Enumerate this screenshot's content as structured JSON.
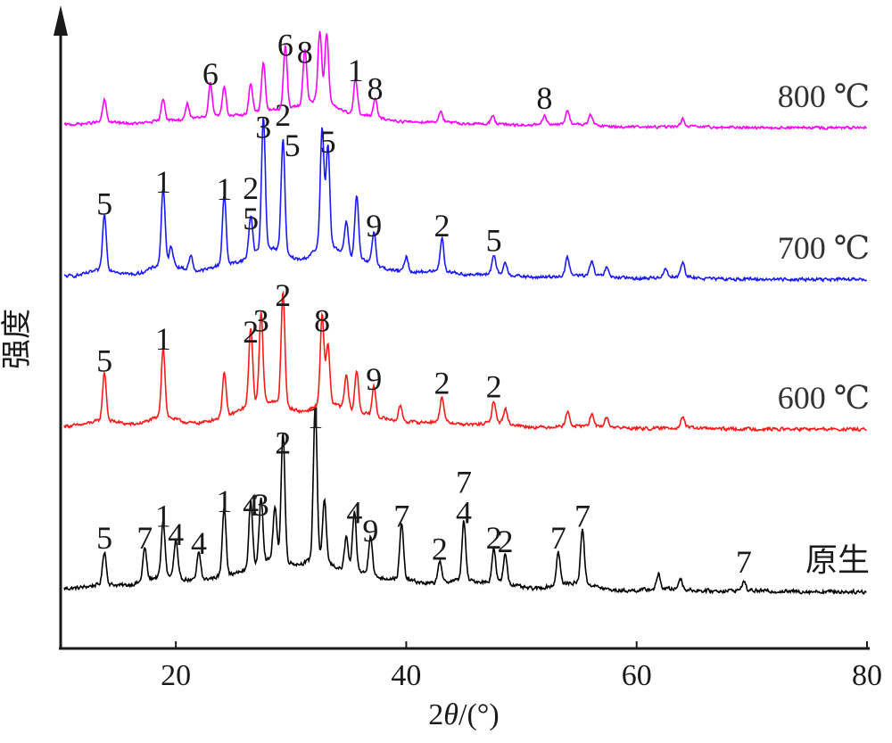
{
  "chart_data": {
    "type": "line",
    "xlabel_prefix": "2",
    "xlabel_var": "θ",
    "xlabel_suffix": "/(°)",
    "ylabel": "强度",
    "xlim": [
      10,
      80
    ],
    "xticks": [
      20,
      40,
      60,
      80
    ],
    "grid": false,
    "series": [
      {
        "name": "原生",
        "color": "#000000",
        "baseline": 0,
        "noise": 0.035,
        "peaks": [
          {
            "x": 13.8,
            "h": 0.45
          },
          {
            "x": 17.3,
            "h": 0.45
          },
          {
            "x": 18.9,
            "h": 0.75
          },
          {
            "x": 20.0,
            "h": 0.5
          },
          {
            "x": 22.0,
            "h": 0.38
          },
          {
            "x": 24.2,
            "h": 0.95
          },
          {
            "x": 26.5,
            "h": 0.9
          },
          {
            "x": 27.4,
            "h": 0.9
          },
          {
            "x": 28.6,
            "h": 0.7
          },
          {
            "x": 29.3,
            "h": 1.75
          },
          {
            "x": 32.1,
            "h": 2.1
          },
          {
            "x": 32.9,
            "h": 0.8
          },
          {
            "x": 34.8,
            "h": 0.45
          },
          {
            "x": 35.5,
            "h": 0.8
          },
          {
            "x": 36.9,
            "h": 0.55
          },
          {
            "x": 39.6,
            "h": 0.75
          },
          {
            "x": 42.9,
            "h": 0.3
          },
          {
            "x": 45.0,
            "h": 0.8
          },
          {
            "x": 47.6,
            "h": 0.45
          },
          {
            "x": 48.6,
            "h": 0.4
          },
          {
            "x": 53.2,
            "h": 0.45
          },
          {
            "x": 55.3,
            "h": 0.75
          },
          {
            "x": 61.9,
            "h": 0.2
          },
          {
            "x": 63.8,
            "h": 0.15
          },
          {
            "x": 69.3,
            "h": 0.12
          }
        ],
        "labels": [
          {
            "text": "5",
            "x": 13.8
          },
          {
            "text": "7",
            "x": 17.3
          },
          {
            "text": "1",
            "x": 18.9
          },
          {
            "text": "4",
            "x": 20.0
          },
          {
            "text": "4",
            "x": 22.0
          },
          {
            "text": "1",
            "x": 24.2
          },
          {
            "text": "4",
            "x": 26.5
          },
          {
            "text": "3",
            "x": 27.4
          },
          {
            "text": "2",
            "x": 29.3
          },
          {
            "text": "1",
            "x": 32.1
          },
          {
            "text": "4",
            "x": 35.5
          },
          {
            "text": "9",
            "x": 36.9
          },
          {
            "text": "7",
            "x": 39.6
          },
          {
            "text": "2",
            "x": 42.9
          },
          {
            "text": "7",
            "x": 45.0,
            "stack": 1
          },
          {
            "text": "4",
            "x": 45.0
          },
          {
            "text": "2",
            "x": 47.6
          },
          {
            "text": "2",
            "x": 48.6
          },
          {
            "text": "7",
            "x": 53.2
          },
          {
            "text": "7",
            "x": 55.3
          },
          {
            "text": "7",
            "x": 69.3
          }
        ]
      },
      {
        "name": "600 ℃",
        "color": "#ff1a1a",
        "baseline": 1,
        "noise": 0.03,
        "peaks": [
          {
            "x": 13.8,
            "h": 0.65
          },
          {
            "x": 18.9,
            "h": 0.95
          },
          {
            "x": 24.2,
            "h": 0.6
          },
          {
            "x": 26.5,
            "h": 1.05
          },
          {
            "x": 27.4,
            "h": 1.2
          },
          {
            "x": 29.3,
            "h": 1.55
          },
          {
            "x": 32.7,
            "h": 1.2
          },
          {
            "x": 33.2,
            "h": 0.8
          },
          {
            "x": 34.8,
            "h": 0.45
          },
          {
            "x": 35.7,
            "h": 0.55
          },
          {
            "x": 37.2,
            "h": 0.4
          },
          {
            "x": 39.5,
            "h": 0.2
          },
          {
            "x": 43.1,
            "h": 0.35
          },
          {
            "x": 47.6,
            "h": 0.3
          },
          {
            "x": 48.6,
            "h": 0.2
          },
          {
            "x": 54.0,
            "h": 0.2
          },
          {
            "x": 56.1,
            "h": 0.15
          },
          {
            "x": 57.4,
            "h": 0.12
          },
          {
            "x": 64.0,
            "h": 0.15
          }
        ],
        "labels": [
          {
            "text": "5",
            "x": 13.8
          },
          {
            "text": "1",
            "x": 18.9
          },
          {
            "text": "2",
            "x": 26.5
          },
          {
            "text": "3",
            "x": 27.4
          },
          {
            "text": "2",
            "x": 29.3
          },
          {
            "text": "8",
            "x": 32.7
          },
          {
            "text": "9",
            "x": 37.2
          },
          {
            "text": "2",
            "x": 43.1
          },
          {
            "text": "2",
            "x": 47.6
          }
        ]
      },
      {
        "name": "700 ℃",
        "color": "#1a1aff",
        "baseline": 2,
        "noise": 0.03,
        "peaks": [
          {
            "x": 13.8,
            "h": 0.75
          },
          {
            "x": 18.9,
            "h": 1.05
          },
          {
            "x": 19.6,
            "h": 0.25
          },
          {
            "x": 21.3,
            "h": 0.2
          },
          {
            "x": 24.2,
            "h": 0.95
          },
          {
            "x": 26.5,
            "h": 0.55
          },
          {
            "x": 27.6,
            "h": 1.8
          },
          {
            "x": 29.3,
            "h": 1.55
          },
          {
            "x": 32.7,
            "h": 1.6
          },
          {
            "x": 33.2,
            "h": 1.35
          },
          {
            "x": 34.8,
            "h": 0.45
          },
          {
            "x": 35.7,
            "h": 0.85
          },
          {
            "x": 37.2,
            "h": 0.45
          },
          {
            "x": 40.0,
            "h": 0.2
          },
          {
            "x": 43.1,
            "h": 0.45
          },
          {
            "x": 47.6,
            "h": 0.25
          },
          {
            "x": 48.6,
            "h": 0.15
          },
          {
            "x": 54.0,
            "h": 0.25
          },
          {
            "x": 56.1,
            "h": 0.2
          },
          {
            "x": 57.4,
            "h": 0.12
          },
          {
            "x": 62.5,
            "h": 0.12
          },
          {
            "x": 64.0,
            "h": 0.2
          }
        ],
        "labels": [
          {
            "text": "5",
            "x": 13.8
          },
          {
            "text": "1",
            "x": 18.9
          },
          {
            "text": "1",
            "x": 24.2
          },
          {
            "text": "2",
            "x": 26.5,
            "stack": 1
          },
          {
            "text": "5",
            "x": 26.5
          },
          {
            "text": "3",
            "x": 27.6
          },
          {
            "text": "2",
            "x": 29.3,
            "stack": 1
          },
          {
            "text": "5",
            "x": 29.3,
            "dx": 0.8
          },
          {
            "text": "5",
            "x": 33.2
          },
          {
            "text": "9",
            "x": 37.2
          },
          {
            "text": "2",
            "x": 43.1
          },
          {
            "text": "5",
            "x": 47.6
          }
        ]
      },
      {
        "name": "800 ℃",
        "color": "#ff00ff",
        "baseline": 3,
        "noise": 0.025,
        "peaks": [
          {
            "x": 13.8,
            "h": 0.3
          },
          {
            "x": 18.9,
            "h": 0.3
          },
          {
            "x": 21.0,
            "h": 0.22
          },
          {
            "x": 23.0,
            "h": 0.45
          },
          {
            "x": 24.2,
            "h": 0.4
          },
          {
            "x": 26.5,
            "h": 0.4
          },
          {
            "x": 27.6,
            "h": 0.65
          },
          {
            "x": 29.5,
            "h": 0.85
          },
          {
            "x": 31.2,
            "h": 0.75
          },
          {
            "x": 32.5,
            "h": 0.95
          },
          {
            "x": 33.1,
            "h": 0.95
          },
          {
            "x": 35.6,
            "h": 0.5
          },
          {
            "x": 37.3,
            "h": 0.25
          },
          {
            "x": 43.0,
            "h": 0.15
          },
          {
            "x": 47.5,
            "h": 0.12
          },
          {
            "x": 52.0,
            "h": 0.12
          },
          {
            "x": 54.0,
            "h": 0.2
          },
          {
            "x": 56.0,
            "h": 0.15
          },
          {
            "x": 64.0,
            "h": 0.1
          }
        ],
        "labels": [
          {
            "text": "6",
            "x": 23.0
          },
          {
            "text": "6",
            "x": 29.5
          },
          {
            "text": "8",
            "x": 31.2
          },
          {
            "text": "1",
            "x": 35.6
          },
          {
            "text": "8",
            "x": 37.3
          },
          {
            "text": "8",
            "x": 52.0
          }
        ]
      }
    ]
  }
}
